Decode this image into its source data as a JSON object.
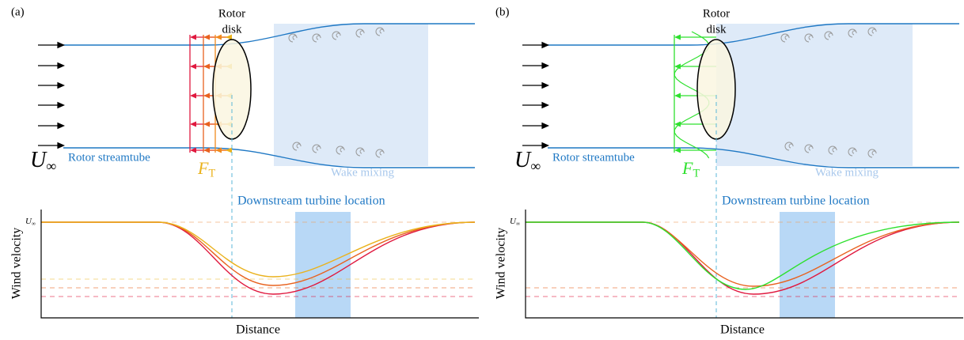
{
  "panels": [
    {
      "label": "(a)",
      "rotor": [
        "Rotor",
        "disk"
      ],
      "inflow": {
        "base": "U",
        "sub": "∞"
      },
      "streamtube": "Rotor streamtube",
      "force": {
        "base": "F",
        "sub": "T"
      },
      "wake": "Wake mixing",
      "downstream": "Downstream turbine location",
      "y_axis": "Wind velocity",
      "x_axis": "Distance",
      "y_tick": {
        "base": "U",
        "sub": "∞"
      }
    },
    {
      "label": "(b)",
      "rotor": [
        "Rotor",
        "disk"
      ],
      "inflow": {
        "base": "U",
        "sub": "∞"
      },
      "streamtube": "Rotor streamtube",
      "force": {
        "base": "F",
        "sub": "T"
      },
      "wake": "Wake mixing",
      "downstream": "Downstream turbine location",
      "y_axis": "Wind velocity",
      "x_axis": "Distance",
      "y_tick": {
        "base": "U",
        "sub": "∞"
      }
    }
  ]
}
